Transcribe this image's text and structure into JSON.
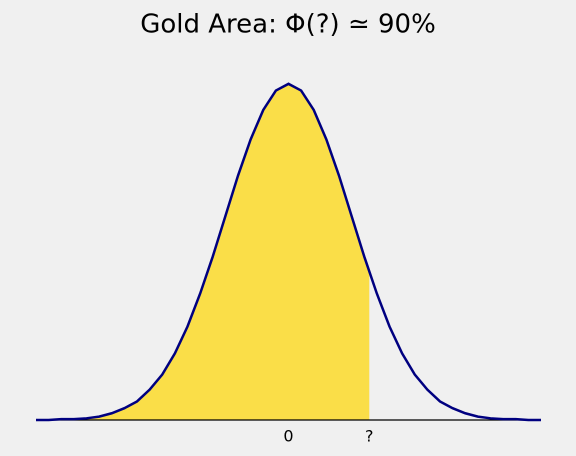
{
  "chart_data": {
    "type": "density",
    "title": "Gold Area: Φ(?) ≃ 90%",
    "x": [
      -4,
      -3.8,
      -3.6,
      -3.4,
      -3.2,
      -3,
      -2.8,
      -2.6,
      -2.4,
      -2.2,
      -2,
      -1.8,
      -1.6,
      -1.4,
      -1.2,
      -1,
      -0.8,
      -0.6,
      -0.4,
      -0.2,
      0,
      0.2,
      0.4,
      0.6,
      0.8,
      1,
      1.2,
      1.4,
      1.6,
      1.8,
      2,
      2.2,
      2.4,
      2.6,
      2.8,
      3,
      3.2,
      3.4,
      3.6,
      3.8,
      4
    ],
    "values": [
      0,
      0,
      0.001,
      0.001,
      0.002,
      0.004,
      0.008,
      0.014,
      0.022,
      0.036,
      0.054,
      0.079,
      0.111,
      0.15,
      0.194,
      0.242,
      0.29,
      0.333,
      0.368,
      0.391,
      0.399,
      0.391,
      0.368,
      0.333,
      0.29,
      0.242,
      0.194,
      0.15,
      0.111,
      0.079,
      0.054,
      0.036,
      0.022,
      0.014,
      0.008,
      0.004,
      0.002,
      0.001,
      0.001,
      0,
      0
    ],
    "color": "#000080",
    "shade_to": 1.28,
    "shade_color": "#fade48",
    "xlim": [
      -4,
      4
    ],
    "ylim": [
      0,
      0.4
    ],
    "xticks": [
      0,
      {
        "value": 1.28,
        "label": "?"
      }
    ]
  }
}
